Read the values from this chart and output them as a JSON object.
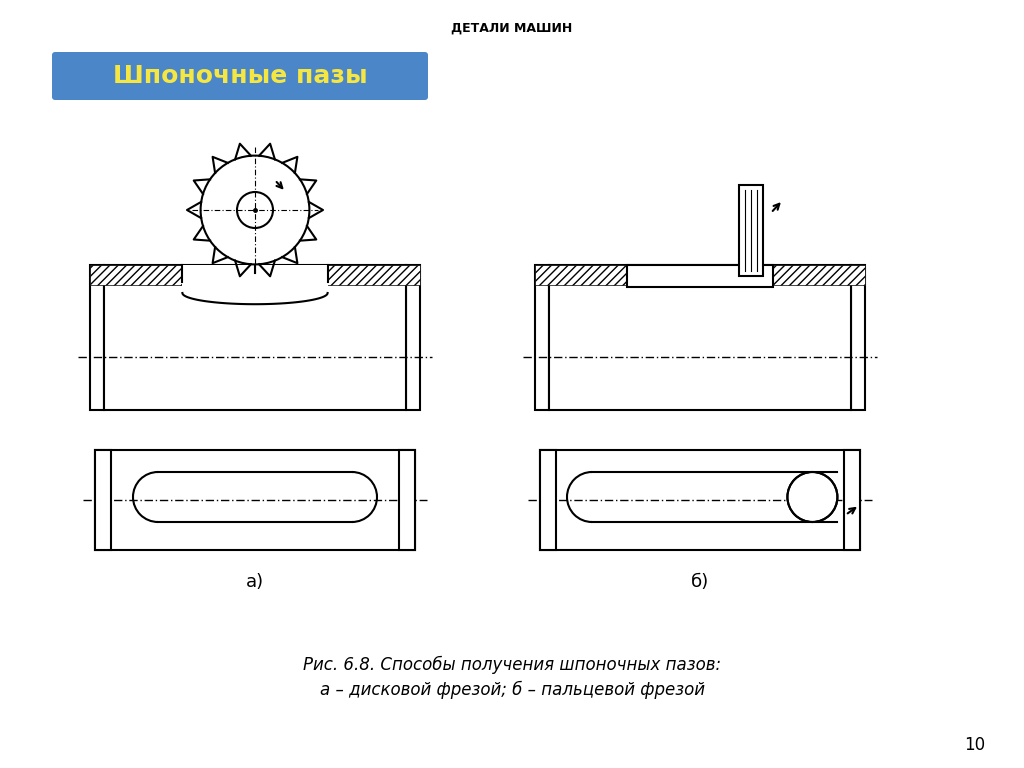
{
  "title_top": "ДЕТАЛИ МАШИН",
  "title_box_text": "Шпоночные пазы",
  "title_box_color": "#4a86c8",
  "title_box_text_color": "#f5e642",
  "caption_line1": "Рис. 6.8. Способы получения шпоночных пазов:",
  "caption_line2": "а – дисковой фрезой; б – пальцевой фрезой",
  "label_a": "а)",
  "label_b": "б)",
  "page_number": "10",
  "bg_color": "#ffffff",
  "line_color": "#000000",
  "hatch_color": "#555555"
}
